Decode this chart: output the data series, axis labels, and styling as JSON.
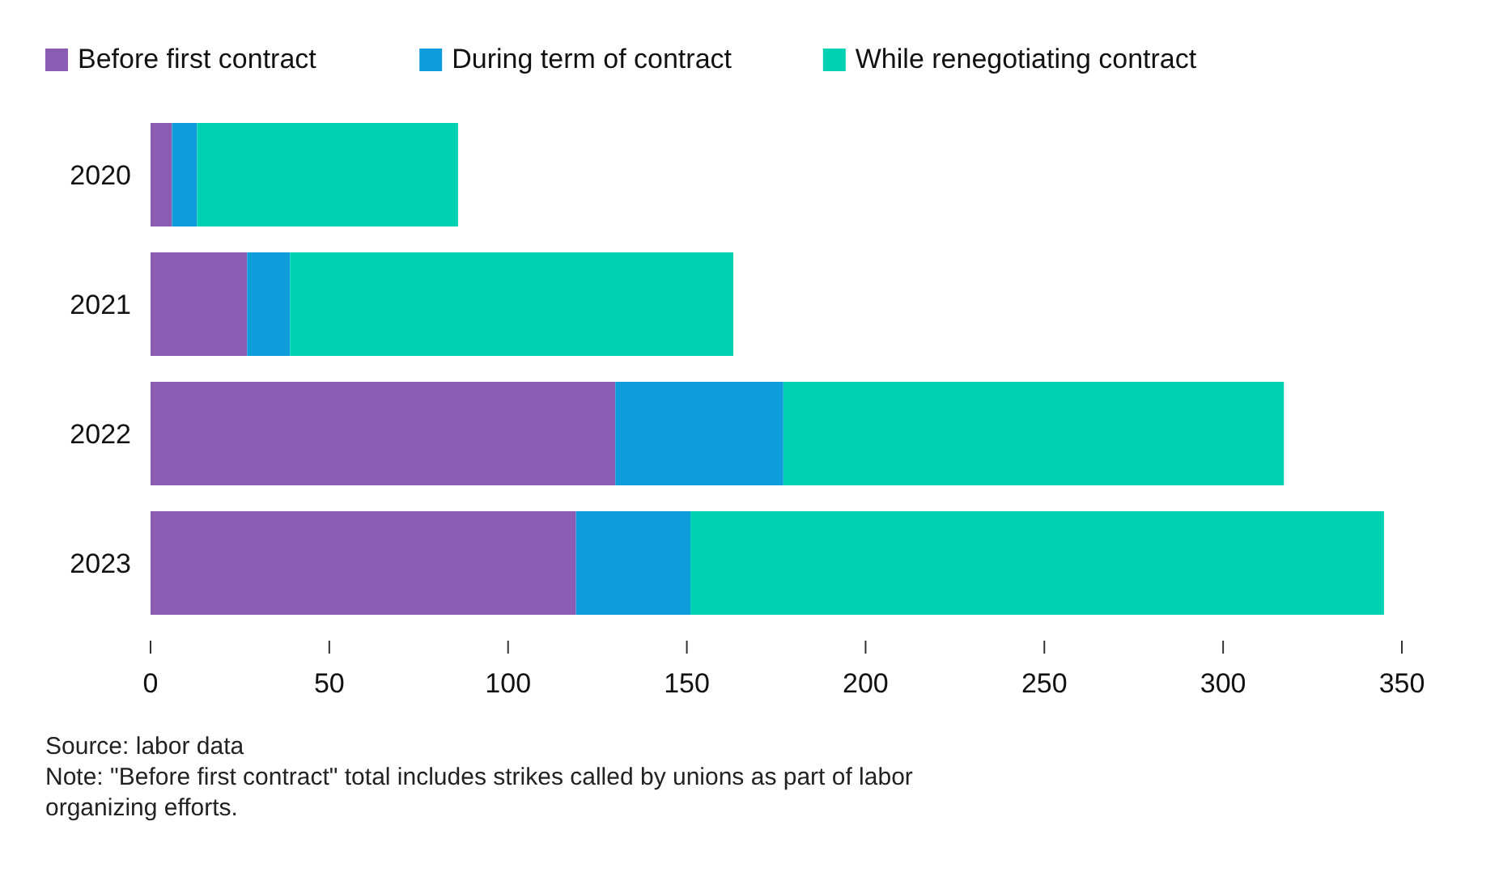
{
  "chart_data": {
    "type": "bar",
    "orientation": "horizontal",
    "stacked": true,
    "categories": [
      "2020",
      "2021",
      "2022",
      "2023"
    ],
    "series": [
      {
        "name": "Before first contract",
        "color": "#8a5db3",
        "values": [
          6,
          27,
          130,
          119
        ]
      },
      {
        "name": "During term of contract",
        "color": "#0f9cdb",
        "values": [
          7,
          12,
          47,
          32
        ]
      },
      {
        "name": "While renegotiating contract",
        "color": "#00d1b2",
        "values": [
          73,
          124,
          140,
          194
        ]
      }
    ],
    "xlim": [
      0,
      350
    ],
    "xticks": [
      0,
      50,
      100,
      150,
      200,
      250,
      300,
      350
    ],
    "grid": false,
    "legend": "top left",
    "annotations": [
      "Source: labor data",
      "Note: \"Before first contract\" total includes strikes called by unions as part of labor organizing efforts."
    ]
  }
}
